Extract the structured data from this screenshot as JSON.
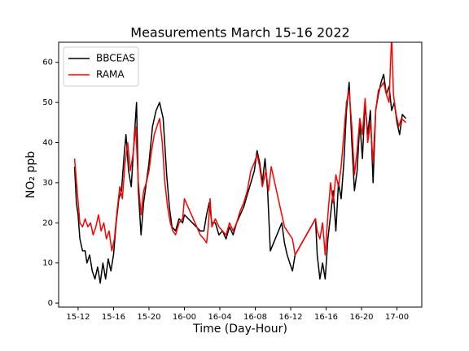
{
  "chart_data": {
    "type": "line",
    "title": "Measurements March 15-16 2022",
    "xlabel": "Time (Day-Hour)",
    "ylabel": "NO₂ ppb",
    "xlim": [
      9.8,
      50.8
    ],
    "ylim": [
      -1,
      65
    ],
    "xticks": [
      {
        "value": 12,
        "label": "15-12"
      },
      {
        "value": 16,
        "label": "15-16"
      },
      {
        "value": 20,
        "label": "15-20"
      },
      {
        "value": 24,
        "label": "16-00"
      },
      {
        "value": 28,
        "label": "16-04"
      },
      {
        "value": 32,
        "label": "16-08"
      },
      {
        "value": 36,
        "label": "16-12"
      },
      {
        "value": 40,
        "label": "16-16"
      },
      {
        "value": 44,
        "label": "16-20"
      },
      {
        "value": 48,
        "label": "17-00"
      }
    ],
    "yticks": [
      0,
      10,
      20,
      30,
      40,
      50,
      60
    ],
    "legend": "upper left",
    "series": [
      {
        "name": "BBCEAS",
        "color": "#000000",
        "x": [
          11.6,
          11.8,
          12.0,
          12.2,
          12.5,
          12.8,
          13.0,
          13.3,
          13.6,
          13.9,
          14.2,
          14.5,
          14.8,
          15.1,
          15.4,
          15.7,
          16.0,
          16.3,
          16.6,
          16.9,
          17.2,
          17.4,
          17.7,
          18.0,
          18.3,
          18.6,
          18.8,
          19.1,
          19.4,
          19.7,
          20.0,
          20.4,
          20.8,
          21.2,
          21.6,
          22.0,
          22.3,
          22.6,
          23.0,
          23.4,
          23.8,
          24.0,
          25.8,
          26.2,
          26.5,
          26.8,
          27.1,
          27.5,
          27.9,
          28.3,
          28.7,
          29.1,
          29.5,
          29.9,
          30.3,
          30.7,
          31.1,
          31.5,
          31.9,
          32.2,
          32.5,
          32.8,
          33.1,
          33.4,
          33.7,
          35.0,
          35.3,
          35.6,
          35.9,
          36.2,
          36.5,
          38.8,
          39.0,
          39.3,
          39.6,
          39.9,
          40.2,
          40.5,
          40.8,
          41.1,
          41.4,
          41.7,
          42.0,
          42.3,
          42.6,
          42.9,
          43.2,
          43.5,
          43.8,
          44.1,
          44.4,
          44.7,
          45.0,
          45.3,
          45.6,
          45.9,
          46.2,
          46.5,
          46.8,
          47.1,
          47.4,
          47.7,
          48.0,
          48.3,
          48.6,
          49.0
        ],
        "values": [
          34,
          25,
          22,
          16,
          13,
          13,
          10,
          12,
          8,
          6,
          9,
          5,
          10,
          6,
          11,
          8,
          12,
          20,
          26,
          28,
          37,
          42,
          33,
          29,
          40,
          50,
          28,
          17,
          25,
          30,
          35,
          44,
          48,
          50,
          46,
          32,
          24,
          19,
          18,
          21,
          20,
          22,
          18,
          18,
          22,
          25,
          20,
          20,
          17,
          18,
          16,
          19,
          17,
          20,
          22,
          24,
          27,
          30,
          33,
          38,
          35,
          30,
          36,
          28,
          13,
          20,
          15,
          12,
          10,
          8,
          12,
          21,
          12,
          6,
          10,
          6,
          16,
          22,
          28,
          18,
          30,
          26,
          35,
          48,
          55,
          40,
          28,
          33,
          45,
          36,
          50,
          42,
          48,
          30,
          48,
          52,
          55,
          57,
          52,
          54,
          48,
          50,
          45,
          42,
          47,
          46
        ]
      },
      {
        "name": "RAMA",
        "color": "#ff0000",
        "x": [
          11.6,
          11.9,
          12.2,
          12.5,
          12.8,
          13.1,
          13.4,
          13.7,
          14.0,
          14.3,
          14.6,
          14.9,
          15.2,
          15.5,
          15.8,
          16.1,
          16.4,
          16.7,
          17.0,
          17.3,
          17.6,
          17.9,
          18.2,
          18.5,
          18.8,
          19.1,
          19.4,
          19.7,
          20.0,
          20.3,
          20.6,
          20.9,
          21.2,
          21.5,
          21.8,
          22.1,
          22.4,
          22.7,
          23.0,
          23.4,
          23.8,
          24.0,
          25.8,
          26.2,
          26.5,
          26.7,
          26.9,
          27.1,
          27.5,
          27.9,
          28.3,
          28.7,
          29.1,
          29.5,
          29.9,
          30.3,
          30.7,
          31.1,
          31.5,
          31.9,
          32.2,
          32.5,
          32.8,
          33.2,
          33.5,
          33.8,
          35.0,
          35.3,
          35.6,
          35.9,
          36.2,
          36.5,
          38.8,
          39.0,
          39.3,
          39.6,
          39.9,
          40.2,
          40.5,
          40.8,
          41.1,
          41.4,
          41.7,
          42.0,
          42.3,
          42.6,
          42.9,
          43.2,
          43.5,
          43.8,
          44.1,
          44.4,
          44.7,
          45.0,
          45.3,
          45.6,
          45.9,
          46.2,
          46.5,
          46.8,
          47.1,
          47.4,
          47.6,
          47.9,
          48.2,
          48.5,
          49.0
        ],
        "values": [
          36,
          28,
          20,
          19,
          21,
          19,
          20,
          17,
          19,
          22,
          18,
          20,
          16,
          18,
          13,
          16,
          23,
          29,
          26,
          35,
          40,
          33,
          37,
          44,
          30,
          22,
          28,
          30,
          33,
          38,
          42,
          44,
          46,
          40,
          30,
          24,
          20,
          18,
          17,
          20,
          21,
          26,
          17,
          16,
          15,
          19,
          26,
          19,
          21,
          19,
          18,
          17,
          20,
          18,
          20,
          23,
          25,
          28,
          33,
          35,
          37,
          34,
          29,
          33,
          28,
          34,
          22,
          19,
          18,
          17,
          16,
          12,
          21,
          18,
          16,
          20,
          12,
          22,
          30,
          25,
          32,
          29,
          34,
          42,
          50,
          53,
          44,
          32,
          38,
          46,
          42,
          51,
          40,
          45,
          35,
          48,
          53,
          54,
          55,
          52,
          50,
          67,
          52,
          47,
          44,
          46,
          45
        ]
      }
    ]
  }
}
